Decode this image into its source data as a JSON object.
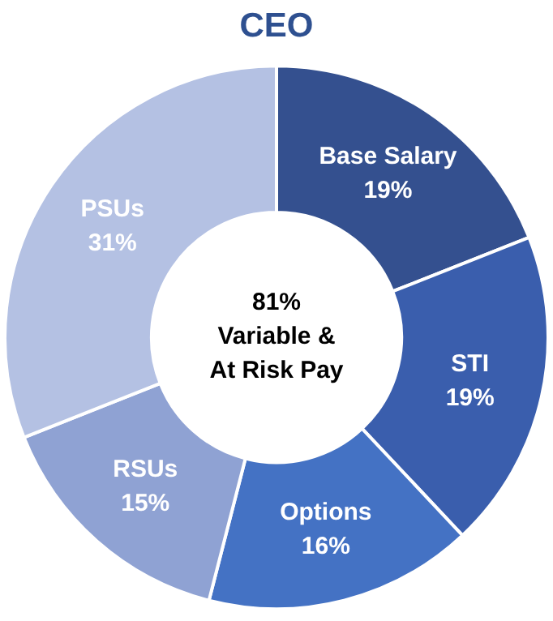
{
  "chart_data": {
    "type": "donut",
    "title": "CEO",
    "categories": [
      "Base Salary",
      "STI",
      "Options",
      "RSUs",
      "PSUs"
    ],
    "values": [
      19,
      19,
      16,
      15,
      31
    ],
    "value_labels": [
      "19%",
      "19%",
      "16%",
      "15%",
      "31%"
    ],
    "colors": [
      "#34508f",
      "#3a5ead",
      "#4472c4",
      "#8fa2d3",
      "#b4c1e3"
    ],
    "annotations": [
      "81%\nVariable &\nAt Risk Pay"
    ],
    "legend": false
  }
}
